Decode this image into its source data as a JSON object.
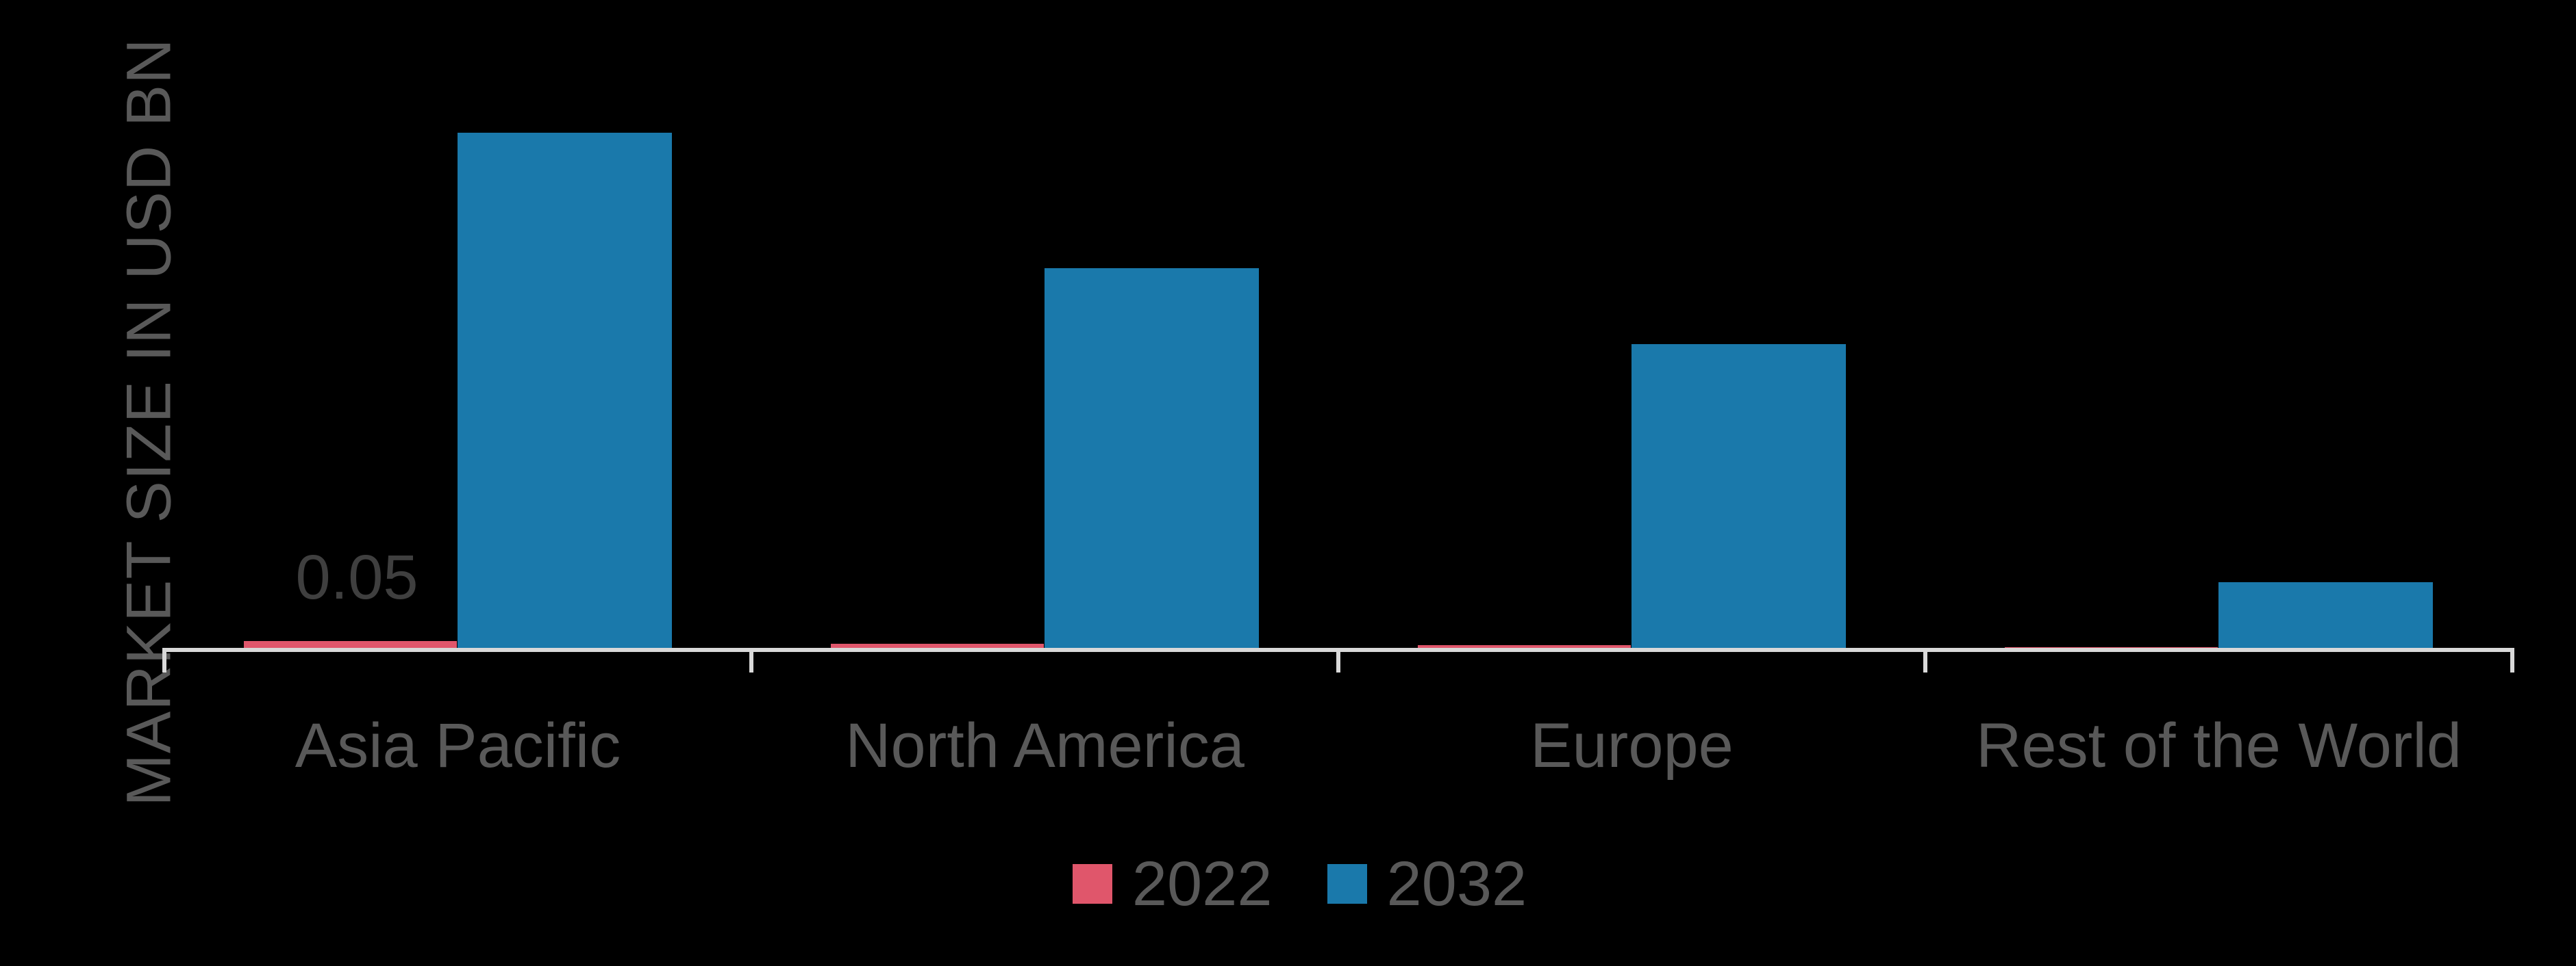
{
  "chart_data": {
    "type": "bar",
    "title": "",
    "xlabel": "",
    "ylabel": "MARKET SIZE IN USD BN",
    "categories": [
      "Asia Pacific",
      "North America",
      "Europe",
      "Rest of the World"
    ],
    "series": [
      {
        "name": "2022",
        "color": "#e0566b",
        "values": [
          0.05,
          0.03,
          0.02,
          0.005
        ]
      },
      {
        "name": "2032",
        "color": "#1a79ab",
        "values": [
          3.77,
          2.78,
          2.22,
          0.48
        ]
      }
    ],
    "data_labels": [
      {
        "series": "2022",
        "category": "Asia Pacific",
        "text": "0.05"
      }
    ],
    "ylim": [
      0,
      4.74
    ],
    "grid": false,
    "legend_position": "bottom",
    "axis": {
      "baseline_color": "#d9d9d9",
      "tick_marks_between_categories": true,
      "y_axis_ticks_visible": false
    },
    "colors": {
      "background": "#000000",
      "category_label_text": "#595959",
      "value_label_text": "#3f3f3f",
      "legend_text": "#595959"
    }
  }
}
